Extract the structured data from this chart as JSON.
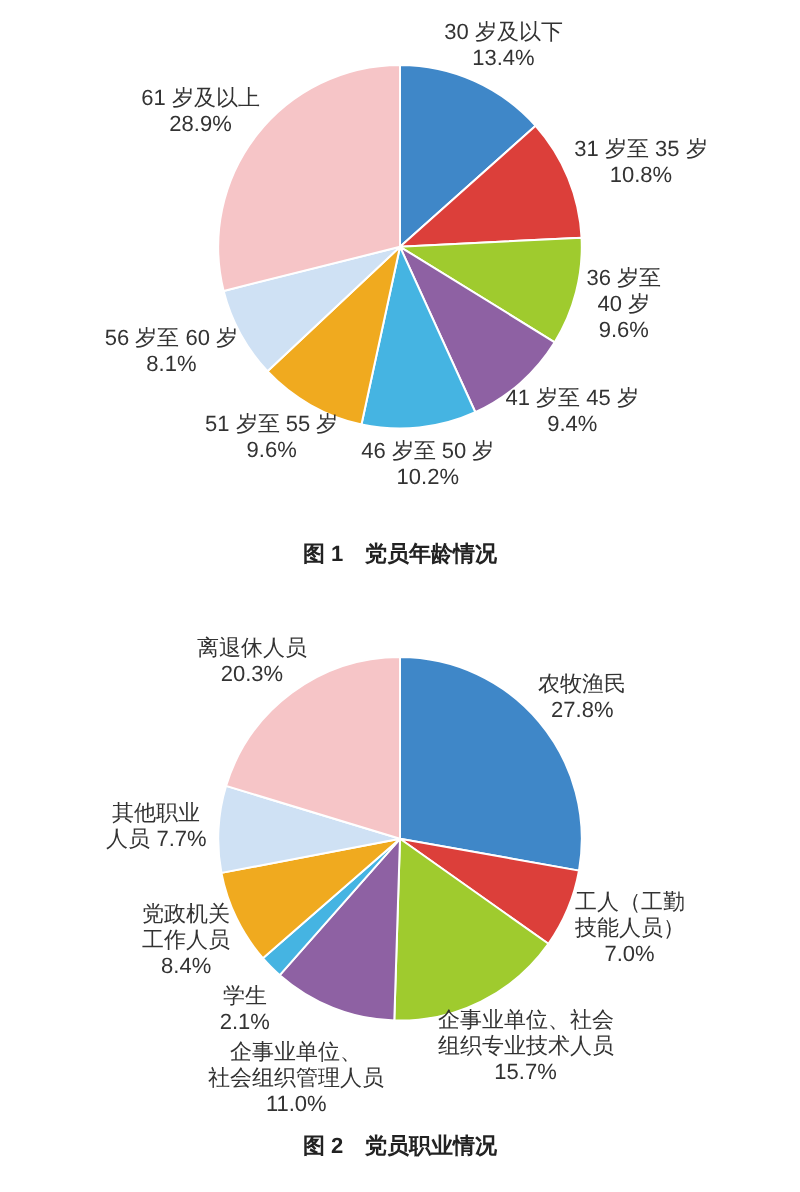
{
  "chart_data": [
    {
      "type": "pie",
      "title": "图 1　党员年龄情况",
      "categories": [
        "30 岁及以下",
        "31 岁至 35 岁",
        "36 岁至 40 岁",
        "41 岁至 45 岁",
        "46 岁至 50 岁",
        "51 岁至 55 岁",
        "56 岁至 60 岁",
        "61 岁及以上"
      ],
      "values": [
        13.4,
        10.8,
        9.6,
        9.4,
        10.2,
        9.6,
        8.1,
        28.9
      ],
      "value_labels": [
        "13.4%",
        "10.8%",
        "9.6%",
        "9.4%",
        "10.2%",
        "9.6%",
        "8.1%",
        "28.9%"
      ],
      "colors": [
        "#3f87c8",
        "#dc3f3a",
        "#9fcb2e",
        "#8e61a3",
        "#45b4e2",
        "#f0aa1f",
        "#cfe1f4",
        "#f6c5c7"
      ],
      "legend": false
    },
    {
      "type": "pie",
      "title": "图 2　党员职业情况",
      "categories": [
        "农牧渔民",
        "工人（工勤技能人员）",
        "企事业单位、社会组织专业技术人员",
        "企事业单位、社会组织管理人员",
        "学生",
        "党政机关工作人员",
        "其他职业人员",
        "离退休人员"
      ],
      "values": [
        27.8,
        7.0,
        15.7,
        11.0,
        2.1,
        8.4,
        7.7,
        20.3
      ],
      "value_labels": [
        "27.8%",
        "7.0%",
        "15.7%",
        "11.0%",
        "2.1%",
        "8.4%",
        "7.7%",
        "20.3%"
      ],
      "colors": [
        "#3f87c8",
        "#dc3f3a",
        "#9fcb2e",
        "#8e61a3",
        "#45b4e2",
        "#f0aa1f",
        "#cfe1f4",
        "#f6c5c7"
      ],
      "legend": false
    }
  ]
}
